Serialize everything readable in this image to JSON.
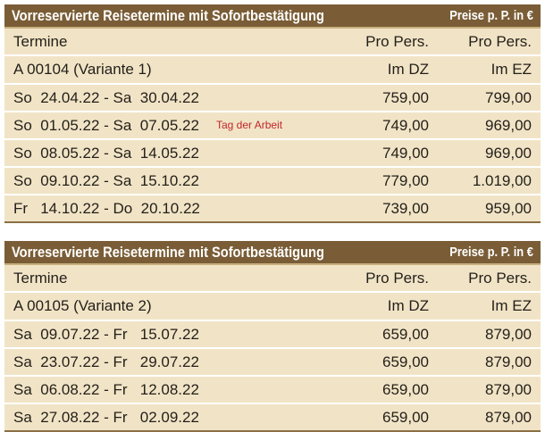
{
  "tables": [
    {
      "title": "Vorreservierte Reisetermine mit Sofortbestätigung",
      "price_note": "Preise p. P. in €",
      "header": {
        "col1": "Termine",
        "col2": "Pro Pers.",
        "col3": "Pro Pers."
      },
      "subheader": {
        "col1": "A 00104 (Variante 1)",
        "col2": "Im DZ",
        "col3": "Im EZ"
      },
      "rows": [
        {
          "dates": "So  24.04.22 - Sa  30.04.22",
          "note": "",
          "dz": "759,00",
          "ez": "799,00"
        },
        {
          "dates": "So  01.05.22 - Sa  07.05.22",
          "note": "Tag der Arbeit",
          "dz": "749,00",
          "ez": "969,00"
        },
        {
          "dates": "So  08.05.22 - Sa  14.05.22",
          "note": "",
          "dz": "749,00",
          "ez": "969,00"
        },
        {
          "dates": "So  09.10.22 - Sa  15.10.22",
          "note": "",
          "dz": "779,00",
          "ez": "1.019,00"
        },
        {
          "dates": "Fr   14.10.22 - Do  20.10.22",
          "note": "",
          "dz": "739,00",
          "ez": "959,00"
        }
      ]
    },
    {
      "title": "Vorreservierte Reisetermine mit Sofortbestätigung",
      "price_note": "Preise p. P. in €",
      "header": {
        "col1": "Termine",
        "col2": "Pro Pers.",
        "col3": "Pro Pers."
      },
      "subheader": {
        "col1": "A 00105 (Variante 2)",
        "col2": "Im DZ",
        "col3": "Im EZ"
      },
      "rows": [
        {
          "dates": "Sa  09.07.22 - Fr   15.07.22",
          "note": "",
          "dz": "659,00",
          "ez": "879,00"
        },
        {
          "dates": "Sa  23.07.22 - Fr   29.07.22",
          "note": "",
          "dz": "659,00",
          "ez": "879,00"
        },
        {
          "dates": "Sa  06.08.22 - Fr   12.08.22",
          "note": "",
          "dz": "659,00",
          "ez": "879,00"
        },
        {
          "dates": "Sa  27.08.22 - Fr   02.09.22",
          "note": "",
          "dz": "659,00",
          "ez": "879,00"
        }
      ]
    }
  ],
  "colors": {
    "title_bg": "#7a5d36",
    "row_bg": "#f1e4c6",
    "note_red": "#c0262c"
  }
}
